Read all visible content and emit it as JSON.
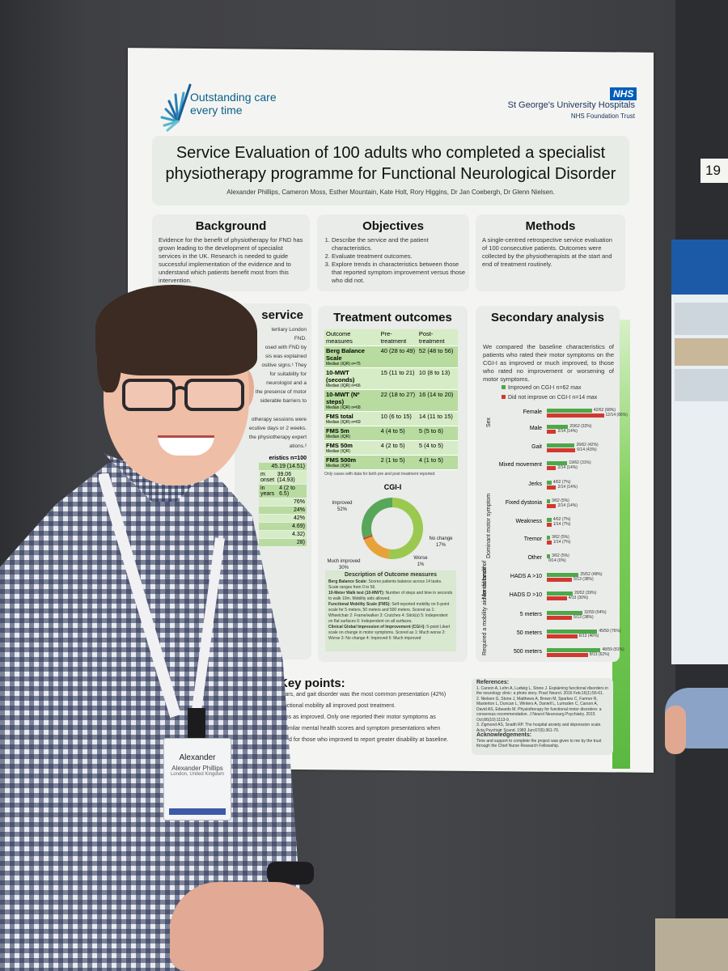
{
  "neighbor": {
    "tag": "19"
  },
  "poster": {
    "logo_text": [
      "Outstanding care",
      "every time"
    ],
    "nhs": "NHS",
    "trust_name": "St George's University Hospitals",
    "trust_sub": "NHS Foundation Trust",
    "title_line1": "Service Evaluation of 100 adults who completed a specialist",
    "title_line2": "physiotherapy programme for Functional Neurological Disorder",
    "authors": "Alexander Phillips, Cameron Moss, Esther Mountain, Kate Holt, Rory Higgins, Dr Jan Coebergh, Dr Glenn Nielsen.",
    "background": {
      "heading": "Background",
      "text": "Evidence for the benefit of physiotherapy for FND has grown leading to the development of specialist services in the UK. Research is needed to guide successful implementation of the evidence and to understand which patients benefit most from this intervention."
    },
    "objectives": {
      "heading": "Objectives",
      "items": [
        "Describe the service and the patient characteristics.",
        "Evaluate treatment outcomes.",
        "Explore trends in characteristics between those that reported symptom improvement versus those who did not."
      ]
    },
    "methods": {
      "heading": "Methods",
      "text": "A single-centred retrospective service evaluation of 100 consecutive patients. Outcomes were collected by the physiotherapists at the start and end of treatment routinely."
    },
    "service": {
      "heading": "service",
      "fragments": [
        "tertiary London",
        "FND.",
        "osed with FND by",
        "sis was explained",
        "ositive signs.¹ They",
        "for suitability for",
        "neurologist and a",
        "the presence of motor",
        "siderable barriers to",
        "otherapy sessions were",
        "ecutive days or 2 weeks.",
        "the physiotherapy expert",
        "ations.²"
      ],
      "table_header": "eristics n=100",
      "rows": [
        {
          "label": "",
          "value": "45.19 (14.51)"
        },
        {
          "label": "m onset",
          "value": "39.06 (14.93)"
        },
        {
          "label": "in years",
          "value": "4 (2 to 6.5)"
        },
        {
          "label": "",
          "value": "76%"
        },
        {
          "label": "",
          "value": "24%"
        },
        {
          "label": "",
          "value": "42%"
        },
        {
          "label": "",
          "value": "4.69)"
        },
        {
          "label": "",
          "value": "4.32)"
        },
        {
          "label": "",
          "value": "28)"
        }
      ]
    },
    "treatment": {
      "heading": "Treatment outcomes",
      "col_headers": [
        "Outcome measures",
        "Pre-treatment",
        "Post-treatment"
      ],
      "rows": [
        {
          "name": "Berg Balance Scale",
          "sub": "Median (IQR) n=75",
          "pre": "40 (28 to 49)",
          "post": "52 (48 to 56)"
        },
        {
          "name": "10-MWT (seconds)",
          "sub": "Median (IQR) n=66",
          "pre": "15 (11 to 21)",
          "post": "10 (8 to 13)"
        },
        {
          "name": "10-MWT (Nº steps)",
          "sub": "Median (IQR) n=68",
          "pre": "22 (18 to 27)",
          "post": "16 (14 to 20)"
        },
        {
          "name": "FMS total",
          "sub": "Median (IQR) n=69",
          "pre": "10 (6 to 15)",
          "post": "14 (11 to 15)"
        },
        {
          "name": "FMS 5m",
          "sub": "Median (IQR)",
          "pre": "4 (4 to 5)",
          "post": "5 (5 to 6)"
        },
        {
          "name": "FMS 50m",
          "sub": "Median (IQR)",
          "pre": "4 (2 to 5)",
          "post": "5 (4 to 5)"
        },
        {
          "name": "FMS 500m",
          "sub": "Median (IQR)",
          "pre": "2 (1 to 5)",
          "post": "4 (1 to 5)"
        }
      ],
      "note": "Only cases with data for both pre and post treatment reported.",
      "cgi_title": "CGI-I",
      "cgi_labels": {
        "improved": "Improved\n52%",
        "no_change": "No change\n17%",
        "much_improved": "Much improved\n30%",
        "worse": "Worse\n1%"
      }
    },
    "cgi_chart": {
      "type": "pie",
      "title": "CGI-I",
      "slices": [
        {
          "label": "Improved",
          "value": 52,
          "color": "#9bc94f"
        },
        {
          "label": "No change",
          "value": 17,
          "color": "#e8a23a"
        },
        {
          "label": "Worse",
          "value": 1,
          "color": "#cc4434"
        },
        {
          "label": "Much improved",
          "value": 30,
          "color": "#58a65a"
        }
      ]
    },
    "description": {
      "heading": "Description of Outcome measures",
      "items": [
        {
          "name": "Berg Balance Scale:",
          "text": "Scores patients balance across 14 tasks. Scale ranges from 0 to 56."
        },
        {
          "name": "10-Meter Walk test (10-MWT):",
          "text": "Number of steps and time in seconds to walk 10m. Mobility aids allowed."
        },
        {
          "name": "Functional Mobility Scale (FMS):",
          "text": "Self-reported mobility on 6-point scale for 5 meters, 50 meters and 500 meters. Scored as 1: Wheelchair 2: Frame/walker 3: Crutches 4: Stick(s) 5: Independent on flat surfaces 6: Independent on all surfaces."
        },
        {
          "name": "Clinical Global Impression of Improvement (CGI-I):",
          "text": "5-point Likert scale on change in motor symptoms. Scored as 1: Much worse 2: Worse 3: No change 4: Improved 5: Much improved"
        }
      ]
    },
    "secondary": {
      "heading": "Secondary analysis",
      "intro": "We compared the baseline characteristics of patients who rated their motor symptoms on the CGI-I as improved or much improved, to those who rated no improvement or worsening of motor symptoms.",
      "legend_improved": "Improved on CGI-I n=62 max",
      "legend_not": "Did not improve on CGI-I n=14 max",
      "group_labels": [
        "Sex",
        "Dominant motor symptom",
        "Mental health",
        "Required a mobility aid for distance of"
      ]
    },
    "chart_data": {
      "type": "bar",
      "orientation": "horizontal",
      "categories": [
        "Female",
        "Male",
        "Gait",
        "Mixed movement",
        "Jerks",
        "Fixed dystonia",
        "Weakness",
        "Tremor",
        "Other",
        "HADS A >10",
        "HADS D >10",
        "5 meters",
        "50 meters",
        "500 meters"
      ],
      "series": [
        {
          "name": "Improved on CGI-I n=62 max",
          "color": "#4ea84a",
          "values": [
            68,
            32,
            42,
            31,
            7,
            5,
            7,
            5,
            5,
            48,
            39,
            54,
            76,
            81
          ],
          "labels": [
            "42/62 (68%)",
            "20/62 (32%)",
            "26/62 (42%)",
            "19/62 (31%)",
            "4/62 (7%)",
            "3/62 (5%)",
            "4/62 (7%)",
            "3/62 (5%)",
            "3/62 (5%)",
            "25/52 (48%)",
            "20/52 (39%)",
            "32/59 (54%)",
            "45/59 (76%)",
            "48/59 (81%)"
          ]
        },
        {
          "name": "Did not improve on CGI-I n=14 max",
          "color": "#d2382f",
          "values": [
            86,
            14,
            43,
            14,
            14,
            14,
            7,
            7,
            0,
            38,
            30,
            38,
            46,
            62
          ],
          "labels": [
            "12/14 (86%)",
            "2/14 (14%)",
            "6/14 (43%)",
            "2/14 (14%)",
            "2/14 (14%)",
            "2/14 (14%)",
            "1/14 (7%)",
            "1/14 (7%)",
            "0/14 (0%)",
            "5/13 (38%)",
            "4/13 (30%)",
            "5/13 (38%)",
            "6/13 (46%)",
            "8/13 (62%)"
          ]
        }
      ],
      "xlim": [
        0,
        100
      ]
    },
    "keypoints": {
      "heading": "Key points:",
      "lines": [
        "years, and gait disorder was the most common presentation (42%)",
        "functional mobility all improved post treatment.",
        "toms as improved. Only one reported their motor symptoms as",
        "d similar mental health scores and symptom presentations when",
        "trend for those who improved to report greater disability at baseline."
      ]
    },
    "references": {
      "heading": "References:",
      "items": [
        "1. Carson A, Lehn A, Ludwig L, Stone J. Explaining functional disorders in the neurology clinic: a photo story. Pract Neurol. 2016 Feb;16(1):56-61.",
        "2. Nielsen G, Stone J, Matthews A, Brown M, Sparkes C, Farmer R, Masterton L, Duncan L, Winters A, Daniell L, Lumsden C, Carson A, David AS, Edwards M. Physiotherapy for functional motor disorders: a consensus recommendation. J Neurol Neurosurg Psychiatry. 2015 Oct;86(10):1113-9.",
        "3. Zigmond AS, Snaith RP. The hospital anxiety and depression scale. Acta Psychiatr Scand. 1983 Jun;67(6):361-70."
      ],
      "ack_heading": "Acknowledgements:",
      "ack_text": "Time and support to complete the project was given to me by the trust through the Chief Nurse Research Fellowship."
    }
  },
  "badge": {
    "first": "Alexander",
    "full": "Alexander Phillips",
    "location": "London, United Kingdom"
  }
}
